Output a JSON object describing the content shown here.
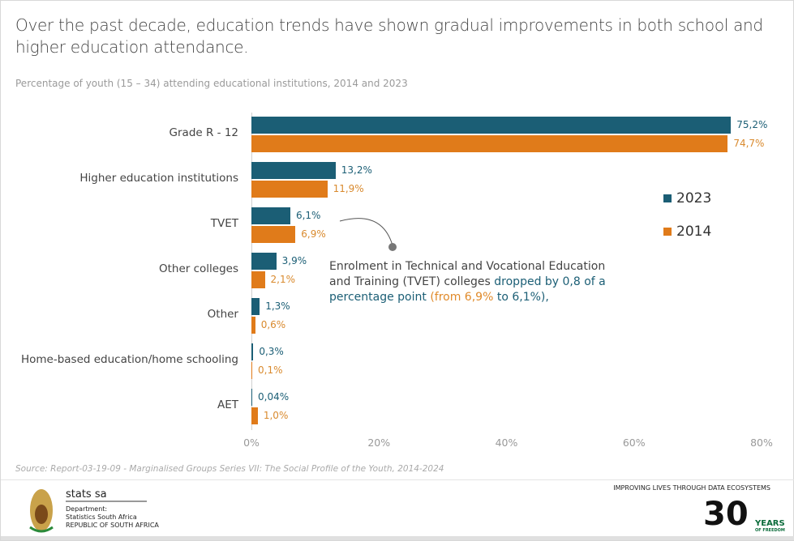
{
  "title": "Over the past decade, education trends have shown gradual improvements in both school and higher education attendance.",
  "subtitle": "Percentage of youth (15 – 34)  attending educational institutions, 2014 and 2023",
  "chart_data": {
    "type": "bar",
    "orientation": "horizontal",
    "categories": [
      "Grade R - 12",
      "Higher education institutions",
      "TVET",
      "Other colleges",
      "Other",
      "Home-based education/home schooling",
      "AET"
    ],
    "series": [
      {
        "name": "2023",
        "color": "#1b5e75",
        "values": [
          75.2,
          13.2,
          6.1,
          3.9,
          1.3,
          0.3,
          0.04
        ],
        "labels": [
          "75,2%",
          "13,2%",
          "6,1%",
          "3,9%",
          "1,3%",
          "0,3%",
          "0,04%"
        ]
      },
      {
        "name": "2014",
        "color": "#e07b1a",
        "values": [
          74.7,
          11.9,
          6.9,
          2.1,
          0.6,
          0.1,
          1.0
        ],
        "labels": [
          "74,7%",
          "11,9%",
          "6,9%",
          "2,1%",
          "0,6%",
          "0,1%",
          "1,0%"
        ]
      }
    ],
    "xlim": [
      0,
      80
    ],
    "xticks": [
      "0%",
      "20%",
      "40%",
      "60%",
      "80%"
    ],
    "legend_position": "right",
    "annotation": {
      "part1": "Enrolment in Technical and Vocational Education and Training (TVET) colleges ",
      "part2": "dropped by 0,8 of a percentage point ",
      "part3": "(from 6,9%",
      "part4": " to 6,1%),"
    }
  },
  "source": "Source: Report-03-19-09 - Marginalised Groups Series VII: The Social Profile of the Youth, 2014-2024",
  "footer": {
    "brand": "stats sa",
    "dept": "Department:",
    "dept2": "Statistics South Africa",
    "republic": "REPUBLIC OF SOUTH AFRICA",
    "tagline": "IMPROVING LIVES THROUGH DATA ECOSYSTEMS",
    "thirty": "30",
    "years": "YEARS",
    "freedom": "OF FREEDOM"
  }
}
